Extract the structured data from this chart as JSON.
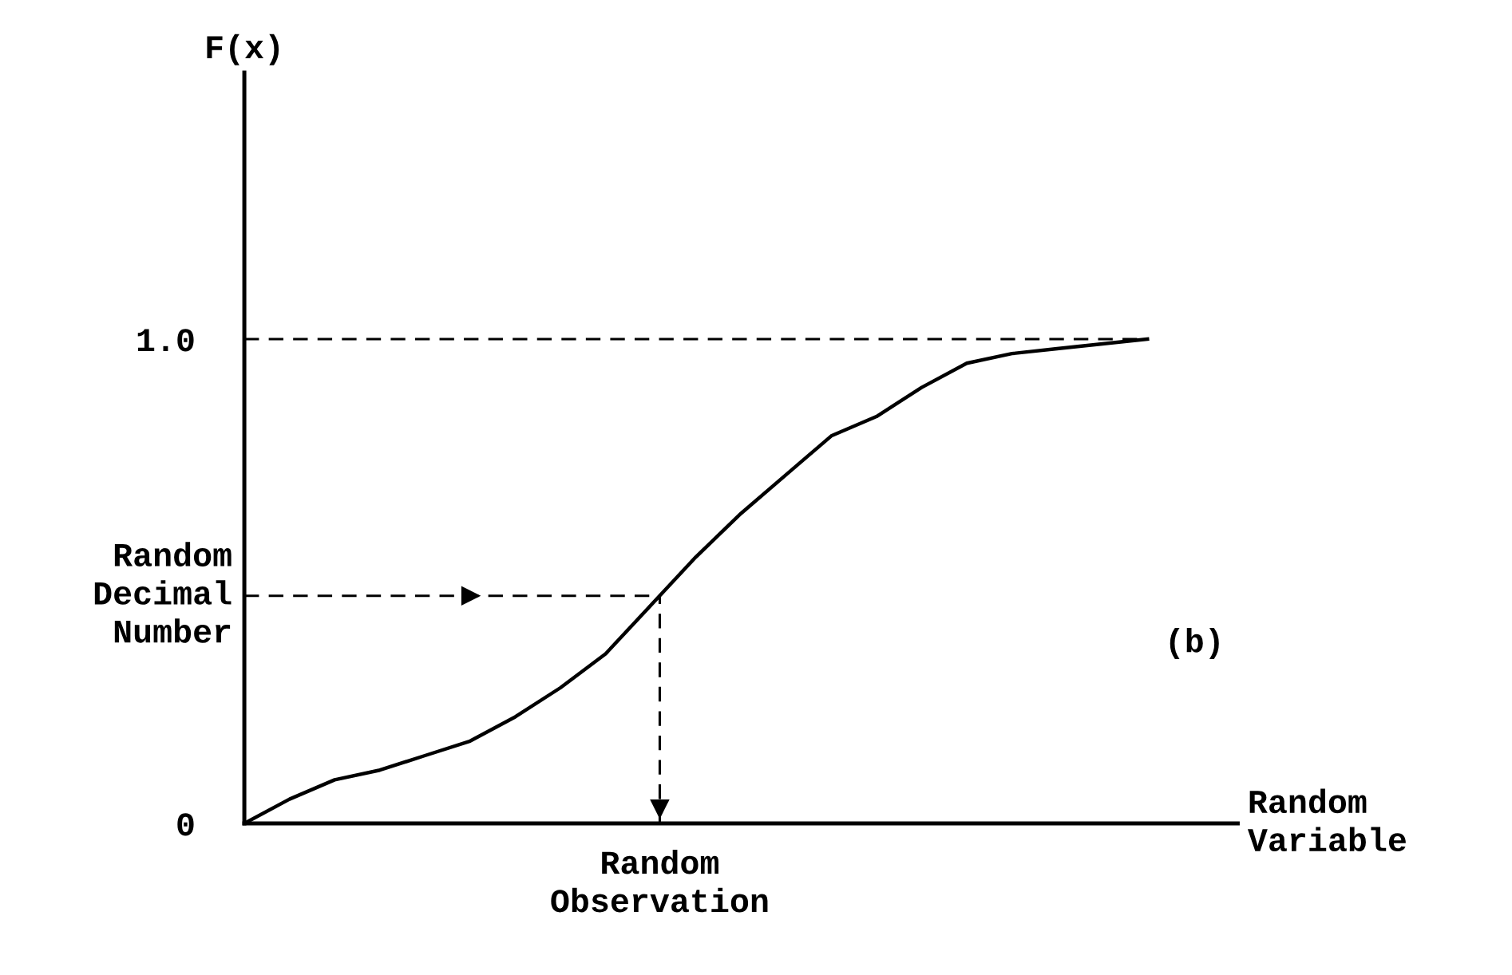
{
  "chart_data": {
    "type": "line",
    "ylabel": "F(x)",
    "xlabel": "Random\nVariable",
    "categories": [
      null,
      null,
      null,
      null,
      null,
      null,
      null,
      null,
      null,
      null,
      null,
      null,
      null,
      null,
      null,
      null,
      null,
      null,
      null,
      null,
      null,
      null,
      null
    ],
    "series": [
      {
        "color": "#000000",
        "values": [
          0,
          0.05,
          0.09,
          0.11,
          0.14,
          0.17,
          0.22,
          0.28,
          0.35,
          0.45,
          0.55,
          0.64,
          0.72,
          0.8,
          0.84,
          0.9,
          0.95,
          0.97,
          0.98,
          0.99,
          1.0,
          null,
          null
        ]
      }
    ],
    "ylim": [
      0,
      1.55
    ],
    "yticks": [
      0,
      {
        "value": 1.0,
        "label": "1.0"
      }
    ],
    "ref_lines": [
      {
        "axis": "y",
        "value": 1.0,
        "line_style": "dashed"
      },
      {
        "axis": "y",
        "value": 0.47,
        "label": "Random\nDecimal\nNumber",
        "line_style": "dashed"
      }
    ],
    "annotations": [
      "Random\nObservation",
      "(b)"
    ],
    "grid": false,
    "legend": false,
    "marker": "none",
    "line_style": "solid"
  }
}
